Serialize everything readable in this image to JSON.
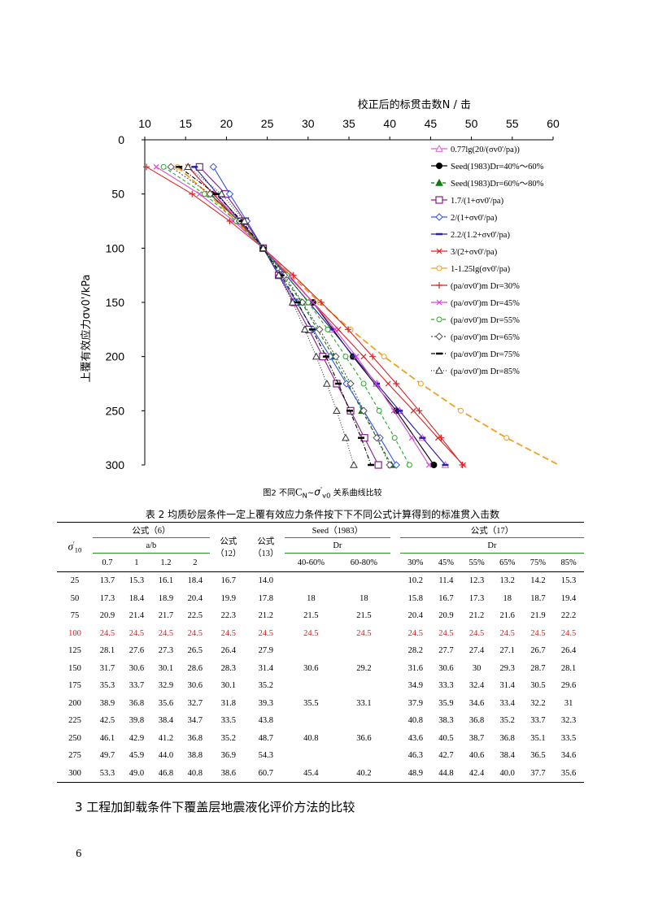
{
  "chart_data": {
    "type": "line",
    "title": "校正后的标贯击数N / 击",
    "ylabel": "上覆有效应力σv0'/kPa",
    "xlim": [
      10,
      60
    ],
    "ylim": [
      300,
      0
    ],
    "x_ticks": [
      "10",
      "15",
      "20",
      "25",
      "30",
      "35",
      "40",
      "45",
      "50",
      "55",
      "60"
    ],
    "y_ticks": [
      "0",
      "50",
      "100",
      "150",
      "200",
      "250",
      "300"
    ],
    "legend_position": "top-right",
    "series": [
      {
        "name": "0.77lg(20/(σv0'/pa))",
        "color": "#e05ce0",
        "marker": "triangle",
        "dash": "",
        "x": [
          15.3,
          18.4,
          21.7,
          24.5,
          27.3,
          30.1,
          32.9,
          35.6,
          38.4,
          41.2,
          44.0,
          46.8
        ],
        "y": [
          25,
          50,
          75,
          100,
          125,
          150,
          175,
          200,
          225,
          250,
          275,
          300
        ]
      },
      {
        "name": "Seed(1983)Dr=40%～60%",
        "color": "#000000",
        "marker": "filled-circle",
        "dash": "",
        "x": [
          18,
          21.5,
          24.5,
          30.6,
          35.5,
          40.8,
          45.4
        ],
        "y": [
          50,
          75,
          100,
          150,
          200,
          250,
          300
        ]
      },
      {
        "name": "Seed(1983)Dr=60%～80%",
        "color": "#0a7a0a",
        "marker": "filled-triangle",
        "dash": "4 3",
        "x": [
          18,
          21.5,
          24.5,
          29.2,
          33.1,
          36.6,
          40.2
        ],
        "y": [
          50,
          75,
          100,
          150,
          200,
          250,
          300
        ]
      },
      {
        "name": "1.7/(1+σv0'/pa)",
        "color": "#8a1a8a",
        "marker": "square",
        "dash": "",
        "x": [
          16.7,
          19.9,
          22.3,
          24.5,
          26.4,
          28.3,
          30.1,
          31.8,
          33.5,
          35.2,
          36.9,
          38.6
        ],
        "y": [
          25,
          50,
          75,
          100,
          125,
          150,
          175,
          200,
          225,
          250,
          275,
          300
        ]
      },
      {
        "name": "2/(1+σv0'/pa)",
        "color": "#3355dd",
        "marker": "diamond",
        "dash": "",
        "x": [
          18.4,
          20.4,
          22.5,
          24.5,
          26.5,
          28.6,
          30.6,
          32.7,
          34.7,
          36.8,
          38.8,
          40.8
        ],
        "y": [
          25,
          50,
          75,
          100,
          125,
          150,
          175,
          200,
          225,
          250,
          275,
          300
        ]
      },
      {
        "name": "2.2/(1.2+σv0'/pa)",
        "color": "#2222aa",
        "marker": "dash",
        "dash": "",
        "x": [
          16.1,
          18.9,
          21.7,
          24.5,
          27.3,
          30.1,
          32.9,
          35.6,
          38.4,
          41.2,
          44.0,
          46.8
        ],
        "y": [
          25,
          50,
          75,
          100,
          125,
          150,
          175,
          200,
          225,
          250,
          275,
          300
        ]
      },
      {
        "name": "3/(2+σv0'/pa)",
        "color": "#dd2222",
        "marker": "x",
        "dash": "",
        "x": [
          15.3,
          18.4,
          21.4,
          24.5,
          27.6,
          30.6,
          33.7,
          36.8,
          39.8,
          42.9,
          45.9,
          49.0
        ],
        "y": [
          25,
          50,
          75,
          100,
          125,
          150,
          175,
          200,
          225,
          250,
          275,
          300
        ]
      },
      {
        "name": "1-1.25lg(σv0'/pa)",
        "color": "#f0a020",
        "marker": "circle",
        "dash": "8 4",
        "x": [
          14.0,
          17.8,
          21.2,
          24.5,
          27.9,
          31.4,
          35.2,
          39.3,
          43.8,
          48.7,
          54.3,
          60.7
        ],
        "y": [
          25,
          50,
          75,
          100,
          125,
          150,
          175,
          200,
          225,
          250,
          275,
          300
        ]
      },
      {
        "name": "(pa/σv0')m Dr=30%",
        "color": "#dd2222",
        "marker": "plus",
        "dash": "",
        "x": [
          10.2,
          15.8,
          20.4,
          24.5,
          28.2,
          31.6,
          34.9,
          37.9,
          40.8,
          43.6,
          46.3,
          48.9
        ],
        "y": [
          25,
          50,
          75,
          100,
          125,
          150,
          175,
          200,
          225,
          250,
          275,
          300
        ]
      },
      {
        "name": "(pa/σv0')m Dr=45%",
        "color": "#dd44dd",
        "marker": "x",
        "dash": "",
        "x": [
          11.4,
          16.7,
          20.9,
          24.5,
          27.7,
          30.6,
          33.3,
          35.9,
          38.3,
          40.5,
          42.7,
          44.8
        ],
        "y": [
          25,
          50,
          75,
          100,
          125,
          150,
          175,
          200,
          225,
          250,
          275,
          300
        ]
      },
      {
        "name": "(pa/σv0')m Dr=55%",
        "color": "#22aa22",
        "marker": "circle",
        "dash": "4 3",
        "x": [
          12.3,
          17.3,
          21.2,
          24.5,
          27.4,
          30,
          32.4,
          34.6,
          36.8,
          38.7,
          40.6,
          42.4
        ],
        "y": [
          25,
          50,
          75,
          100,
          125,
          150,
          175,
          200,
          225,
          250,
          275,
          300
        ]
      },
      {
        "name": "(pa/σv0')m Dr=65%",
        "color": "#555555",
        "marker": "diamond",
        "dash": "2 2",
        "x": [
          13.2,
          18,
          21.6,
          24.5,
          27.1,
          29.3,
          31.4,
          33.4,
          35.2,
          36.8,
          38.4,
          40.0
        ],
        "y": [
          25,
          50,
          75,
          100,
          125,
          150,
          175,
          200,
          225,
          250,
          275,
          300
        ]
      },
      {
        "name": "(pa/σv0')m Dr=75%",
        "color": "#000000",
        "marker": "dash",
        "dash": "5 2 1 2",
        "x": [
          14.2,
          18.7,
          21.9,
          24.5,
          26.7,
          28.7,
          30.5,
          32.2,
          33.7,
          35.1,
          36.5,
          37.7
        ],
        "y": [
          25,
          50,
          75,
          100,
          125,
          150,
          175,
          200,
          225,
          250,
          275,
          300
        ]
      },
      {
        "name": "(pa/σv0')m Dr=85%",
        "color": "#333333",
        "marker": "triangle",
        "dash": "1 2",
        "x": [
          15.3,
          19.4,
          22.2,
          24.5,
          26.4,
          28.1,
          29.6,
          31,
          32.3,
          33.5,
          34.6,
          35.6
        ],
        "y": [
          25,
          50,
          75,
          100,
          125,
          150,
          175,
          200,
          225,
          250,
          275,
          300
        ]
      }
    ]
  },
  "figure": {
    "caption_prefix": "图2   不同",
    "caption_cn": "C",
    "caption_n_sub": "N",
    "caption_tilde": "~",
    "caption_sigma": "σ",
    "caption_prime": "'",
    "caption_v0_sub": "v0",
    "caption_suffix": "关系曲线比较"
  },
  "table": {
    "caption": "表 2  均质砂层条件一定上覆有效应力条件按下下不同公式计算得到的标准贯入击数",
    "row_header_symbol": "σ",
    "row_header_prime": "'",
    "row_header_sub": "10",
    "group_formula6": "公式（6）",
    "sub_ab": "a/b",
    "ab_values": [
      "0.7",
      "1",
      "1.2",
      "2"
    ],
    "formula12_line1": "公式",
    "formula12_line2": "（12）",
    "formula13_line1": "公式",
    "formula13_line2": "（13）",
    "group_seed": "Seed（1983）",
    "seed_dr": "Dr",
    "seed_values": [
      "40-60%",
      "60-80%"
    ],
    "group_formula17": "公式（17）",
    "f17_dr": "Dr",
    "f17_values": [
      "30%",
      "45%",
      "55%",
      "65%",
      "75%",
      "85%"
    ],
    "rows": [
      [
        "25",
        "13.7",
        "15.3",
        "16.1",
        "18.4",
        "16.7",
        "14.0",
        "",
        "",
        "10.2",
        "11.4",
        "12.3",
        "13.2",
        "14.2",
        "15.3"
      ],
      [
        "50",
        "17.3",
        "18.4",
        "18.9",
        "20.4",
        "19.9",
        "17.8",
        "18",
        "18",
        "15.8",
        "16.7",
        "17.3",
        "18",
        "18.7",
        "19.4"
      ],
      [
        "75",
        "20.9",
        "21.4",
        "21.7",
        "22.5",
        "22.3",
        "21.2",
        "21.5",
        "21.5",
        "20.4",
        "20.9",
        "21.2",
        "21.6",
        "21.9",
        "22.2"
      ],
      [
        "100",
        "24.5",
        "24.5",
        "24.5",
        "24.5",
        "24.5",
        "24.5",
        "24.5",
        "24.5",
        "24.5",
        "24.5",
        "24.5",
        "24.5",
        "24.5",
        "24.5"
      ],
      [
        "125",
        "28.1",
        "27.6",
        "27.3",
        "26.5",
        "26.4",
        "27.9",
        "",
        "",
        "28.2",
        "27.7",
        "27.4",
        "27.1",
        "26.7",
        "26.4"
      ],
      [
        "150",
        "31.7",
        "30.6",
        "30.1",
        "28.6",
        "28.3",
        "31.4",
        "30.6",
        "29.2",
        "31.6",
        "30.6",
        "30",
        "29.3",
        "28.7",
        "28.1"
      ],
      [
        "175",
        "35.3",
        "33.7",
        "32.9",
        "30.6",
        "30.1",
        "35.2",
        "",
        "",
        "34.9",
        "33.3",
        "32.4",
        "31.4",
        "30.5",
        "29.6"
      ],
      [
        "200",
        "38.9",
        "36.8",
        "35.6",
        "32.7",
        "31.8",
        "39.3",
        "35.5",
        "33.1",
        "37.9",
        "35.9",
        "34.6",
        "33.4",
        "32.2",
        "31"
      ],
      [
        "225",
        "42.5",
        "39.8",
        "38.4",
        "34.7",
        "33.5",
        "43.8",
        "",
        "",
        "40.8",
        "38.3",
        "36.8",
        "35.2",
        "33.7",
        "32.3"
      ],
      [
        "250",
        "46.1",
        "42.9",
        "41.2",
        "36.8",
        "35.2",
        "48.7",
        "40.8",
        "36.6",
        "43.6",
        "40.5",
        "38.7",
        "36.8",
        "35.1",
        "33.5"
      ],
      [
        "275",
        "49.7",
        "45.9",
        "44.0",
        "38.8",
        "36.9",
        "54.3",
        "",
        "",
        "46.3",
        "42.7",
        "40.6",
        "38.4",
        "36.5",
        "34.6"
      ],
      [
        "300",
        "53.3",
        "49.0",
        "46.8",
        "40.8",
        "38.6",
        "60.7",
        "45.4",
        "40.2",
        "48.9",
        "44.8",
        "42.4",
        "40.0",
        "37.7",
        "35.6"
      ]
    ]
  },
  "section_title": "3  工程加卸载条件下覆盖层地震液化评价方法的比较",
  "page_number": "6"
}
